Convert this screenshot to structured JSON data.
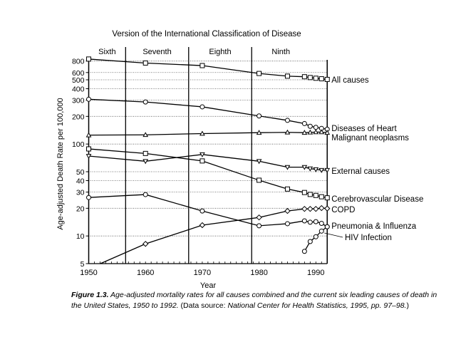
{
  "chart_data": {
    "type": "line",
    "title": "Version of the International Classification of Disease",
    "xlabel": "Year",
    "ylabel": "Age-adjusted Death Rate per 100,000",
    "y_scale": "log",
    "xlim": [
      1950,
      1992
    ],
    "ylim": [
      5,
      900
    ],
    "x_ticks": [
      1950,
      1960,
      1970,
      1980,
      1990
    ],
    "y_ticks": [
      5,
      10,
      20,
      30,
      40,
      50,
      100,
      200,
      300,
      400,
      500,
      600,
      800
    ],
    "grid": "horizontal dotted at y ticks",
    "legend": "labels at right end of each series",
    "eras": [
      {
        "label": "Sixth",
        "start": 1950,
        "end": 1956.5
      },
      {
        "label": "Seventh",
        "start": 1956.5,
        "end": 1967.6
      },
      {
        "label": "Eighth",
        "start": 1967.6,
        "end": 1978.7
      },
      {
        "label": "Ninth",
        "start": 1978.7,
        "end": 1992
      }
    ],
    "x": [
      1950,
      1960,
      1970,
      1980,
      1985,
      1988,
      1989,
      1990,
      1991,
      1992
    ],
    "series": [
      {
        "name": "All causes",
        "marker": "square",
        "values": [
          841,
          761,
          714,
          586,
          548,
          540,
          529,
          520,
          513,
          505
        ]
      },
      {
        "name": "Diseases of Heart",
        "marker": "circle",
        "values": [
          307,
          287,
          254,
          202,
          181,
          167,
          156,
          152,
          148,
          145
        ]
      },
      {
        "name": "Malignant neoplasms",
        "marker": "triangle-up",
        "values": [
          125,
          126,
          130,
          133,
          134,
          133,
          134,
          135,
          135,
          133
        ]
      },
      {
        "name": "External causes",
        "marker": "triangle-down",
        "values": [
          74,
          65,
          77,
          65,
          56,
          56,
          54,
          53,
          52,
          52
        ]
      },
      {
        "name": "Cerebrovascular Disease",
        "marker": "square",
        "values": [
          88.5,
          79,
          65.5,
          40.4,
          32.4,
          29.7,
          28.3,
          27.6,
          26.7,
          26
        ]
      },
      {
        "name": "COPD",
        "marker": "diamond",
        "values": [
          4.4,
          8.2,
          13.1,
          15.9,
          18.7,
          19.7,
          19.7,
          19.7,
          20.1,
          19.9
        ]
      },
      {
        "name": "Pneumonia & Influenza",
        "marker": "circle",
        "values": [
          26.2,
          28.2,
          18.7,
          12.9,
          13.6,
          14.6,
          14.1,
          14.3,
          13.7,
          12.6
        ]
      },
      {
        "name": "HIV Infection",
        "marker": "circle",
        "x": [
          1988,
          1989,
          1990,
          1991,
          1992
        ],
        "values": [
          6.8,
          8.7,
          9.8,
          11.3,
          12.6
        ]
      }
    ]
  },
  "caption": {
    "label": "Figure 1.3.",
    "text1": " Age-adjusted mortality rates for all causes combined and the current six leading causes of death in the United States, 1950 to 1992. ",
    "text2": "(Data source: ",
    "text3": "National Center for Health Statistics, 1995, pp. 97–98.",
    "text4": ")"
  }
}
